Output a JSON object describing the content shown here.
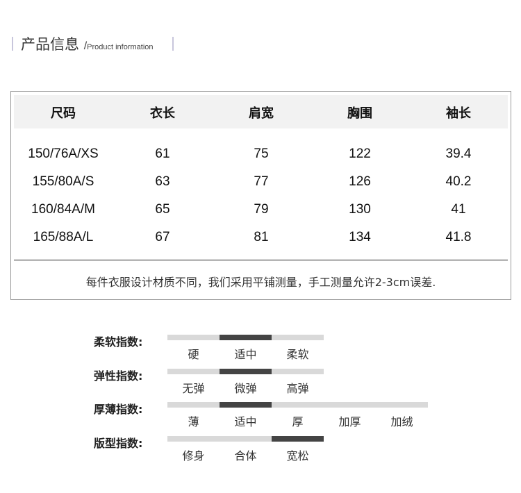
{
  "header": {
    "title": "产品信息",
    "slash": "/",
    "subtitle": "Product information"
  },
  "table": {
    "columns": [
      "尺码",
      "衣长",
      "肩宽",
      "胸围",
      "袖长"
    ],
    "rows": [
      [
        "150/76A/XS",
        "61",
        "75",
        "122",
        "39.4"
      ],
      [
        "155/80A/S",
        "63",
        "77",
        "126",
        "40.2"
      ],
      [
        "160/84A/M",
        "65",
        "79",
        "130",
        "41"
      ],
      [
        "165/88A/L",
        "67",
        "81",
        "134",
        "41.8"
      ]
    ],
    "note": "每件衣服设计材质不同，我们采用平铺测量，手工测量允许2-3cm误差."
  },
  "indices": [
    {
      "label": "柔软指数:",
      "options": [
        "硬",
        "适中",
        "柔软"
      ],
      "selected": 1
    },
    {
      "label": "弹性指数:",
      "options": [
        "无弹",
        "微弹",
        "高弹"
      ],
      "selected": 1
    },
    {
      "label": "厚薄指数:",
      "options": [
        "薄",
        "适中",
        "厚",
        "加厚",
        "加绒"
      ],
      "selected": 1
    },
    {
      "label": "版型指数:",
      "options": [
        "修身",
        "合体",
        "宽松"
      ],
      "selected": 2
    }
  ],
  "colors": {
    "active": "#444444",
    "inactive": "#d9d9d9",
    "header_bg": "#f2f2f2"
  }
}
